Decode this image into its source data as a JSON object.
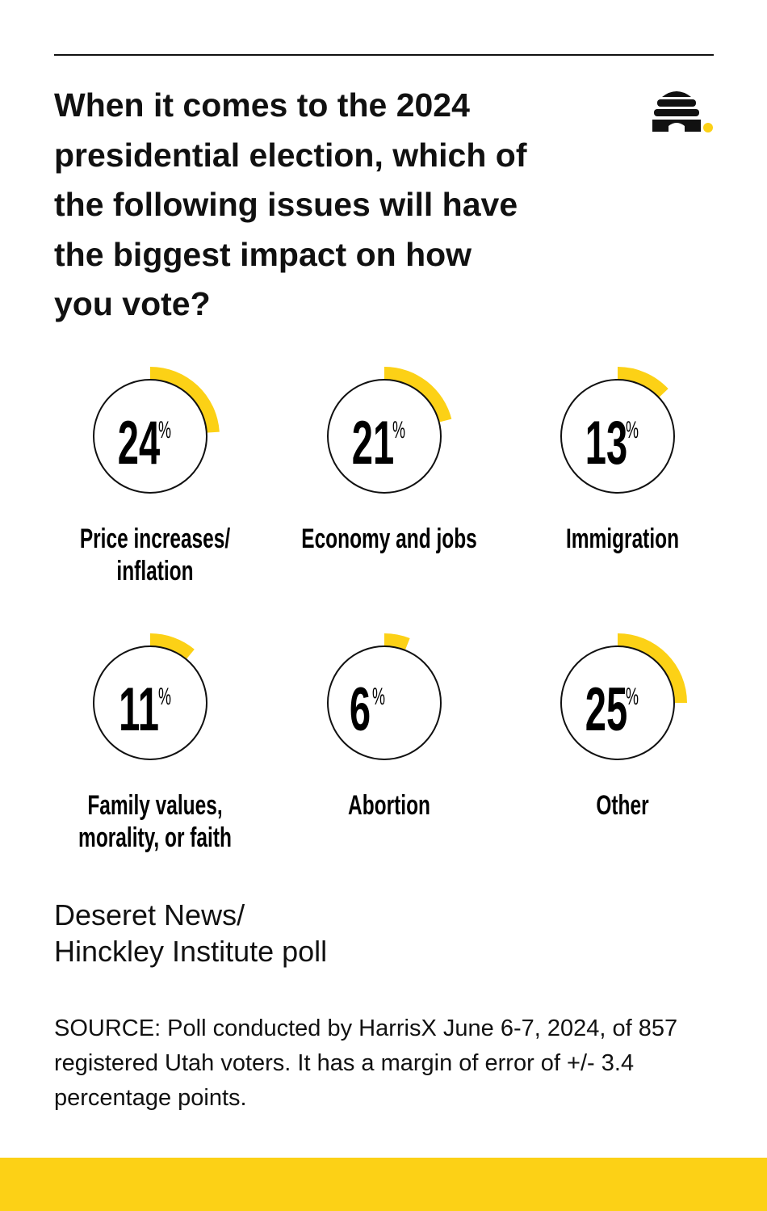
{
  "title": "When it comes to the 2024 presidential election, which of the following issues will have the biggest impact on how you vote?",
  "logo": "beehive-logo",
  "chart_data": {
    "type": "radial-progress",
    "unit": "%",
    "categories": [
      [
        "Price increases/",
        "inflation"
      ],
      [
        "Economy and jobs"
      ],
      [
        "Immigration"
      ],
      [
        "Family values,",
        "morality, or faith"
      ],
      [
        "Abortion"
      ],
      [
        "Other"
      ]
    ],
    "values": [
      24,
      21,
      13,
      11,
      6,
      25
    ],
    "accent_color": "#fcd116"
  },
  "credit": [
    "Deseret News/",
    "Hinckley Institute poll"
  ],
  "source": "SOURCE: Poll conducted by HarrisX June 6-7, 2024, of 857 registered Utah voters. It has a margin of error of +/- 3.4 percentage points.",
  "colors": {
    "accent": "#fcd116",
    "text": "#111111"
  }
}
